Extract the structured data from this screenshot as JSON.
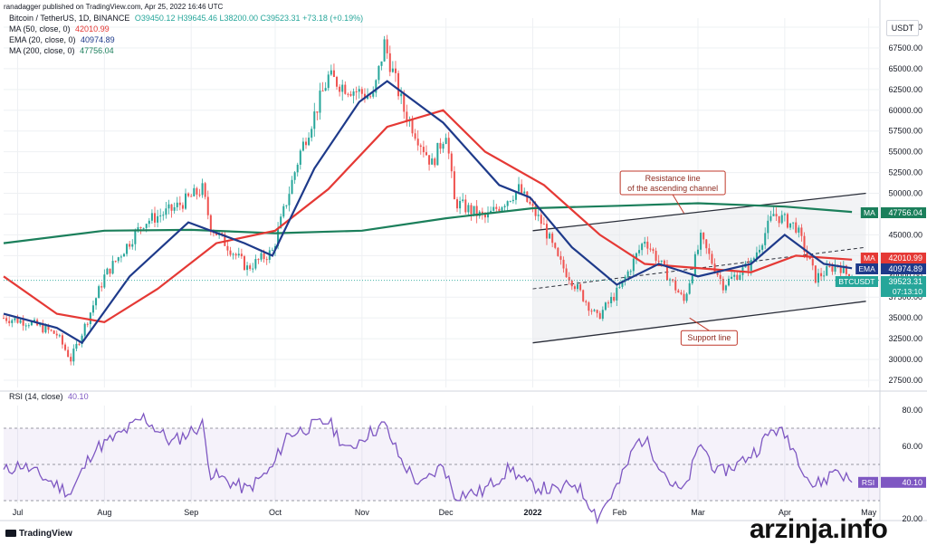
{
  "header": {
    "published": "ranadagger published on TradingView.com, Apr 25, 2022 16:46 UTC",
    "symbol": "Bitcoin / TetherUS, 1D, BINANCE",
    "ohlc": "O39450.12  H39645.46  L38200.00  C39523.31  +73.18 (+0.19%)",
    "ma50_label": "MA (50, close, 0)",
    "ma50_value": "42010.99",
    "ema20_label": "EMA (20, close, 0)",
    "ema20_value": "40974.89",
    "ma200_label": "MA (200, close, 0)",
    "ma200_value": "47756.04",
    "rsi_label": "RSI (14, close)",
    "rsi_value": "40.10",
    "currency": "USDT"
  },
  "footer": {
    "tradingview": "TradingView",
    "watermark": "arzinja.info"
  },
  "colors": {
    "up": "#26a69a",
    "down": "#ef5350",
    "ma50": "#e53935",
    "ema20": "#1e3a8a",
    "ma200": "#1b7f5b",
    "rsi": "#7e57c2",
    "grid": "#eef0f3"
  },
  "chart_data": [
    {
      "type": "candlestick",
      "title": "Bitcoin / TetherUS, 1D, BINANCE",
      "x_ticks": [
        "Jul",
        "Aug",
        "Sep",
        "Oct",
        "Nov",
        "Dec",
        "2022",
        "Feb",
        "Mar",
        "Apr",
        "May"
      ],
      "y_ticks": [
        "27500.00",
        "30000.00",
        "32500.00",
        "35000.00",
        "37500.00",
        "40000.00",
        "42500.00",
        "45000.00",
        "47500.00",
        "50000.00",
        "52500.00",
        "55000.00",
        "57500.00",
        "60000.00",
        "62500.00",
        "65000.00",
        "67500.00",
        "70000.00"
      ],
      "ylim": [
        27500,
        70000
      ],
      "x_range": [
        "2021-06-26",
        "2022-05-05"
      ],
      "price_path": [
        [
          "2021-06-26",
          35000
        ],
        [
          "2021-07-05",
          34500
        ],
        [
          "2021-07-15",
          33000
        ],
        [
          "2021-07-20",
          30000
        ],
        [
          "2021-07-25",
          34000
        ],
        [
          "2021-08-01",
          40000
        ],
        [
          "2021-08-15",
          46500
        ],
        [
          "2021-08-25",
          48000
        ],
        [
          "2021-09-05",
          50500
        ],
        [
          "2021-09-08",
          46000
        ],
        [
          "2021-09-21",
          41000
        ],
        [
          "2021-09-30",
          43000
        ],
        [
          "2021-10-10",
          55000
        ],
        [
          "2021-10-20",
          64000
        ],
        [
          "2021-10-25",
          63000
        ],
        [
          "2021-11-05",
          61500
        ],
        [
          "2021-11-09",
          68000
        ],
        [
          "2021-11-16",
          60000
        ],
        [
          "2021-11-26",
          53500
        ],
        [
          "2021-12-01",
          57500
        ],
        [
          "2021-12-04",
          49000
        ],
        [
          "2021-12-15",
          47000
        ],
        [
          "2021-12-27",
          50500
        ],
        [
          "2022-01-05",
          46000
        ],
        [
          "2022-01-10",
          42000
        ],
        [
          "2022-01-21",
          36500
        ],
        [
          "2022-01-24",
          35000
        ],
        [
          "2022-02-01",
          38500
        ],
        [
          "2022-02-10",
          44500
        ],
        [
          "2022-02-24",
          37000
        ],
        [
          "2022-03-02",
          44500
        ],
        [
          "2022-03-10",
          39000
        ],
        [
          "2022-03-20",
          41500
        ],
        [
          "2022-03-28",
          47500
        ],
        [
          "2022-04-05",
          46000
        ],
        [
          "2022-04-12",
          39800
        ],
        [
          "2022-04-20",
          41500
        ],
        [
          "2022-04-25",
          39523.31
        ]
      ],
      "ma50_path": [
        [
          "2021-06-26",
          40000
        ],
        [
          "2021-07-15",
          35500
        ],
        [
          "2021-08-01",
          34500
        ],
        [
          "2021-08-20",
          38500
        ],
        [
          "2021-09-10",
          44000
        ],
        [
          "2021-10-01",
          45500
        ],
        [
          "2021-10-20",
          50500
        ],
        [
          "2021-11-10",
          58000
        ],
        [
          "2021-11-30",
          60000
        ],
        [
          "2021-12-15",
          55000
        ],
        [
          "2022-01-05",
          51000
        ],
        [
          "2022-01-25",
          45000
        ],
        [
          "2022-02-10",
          41500
        ],
        [
          "2022-03-01",
          41000
        ],
        [
          "2022-03-20",
          40500
        ],
        [
          "2022-04-05",
          42500
        ],
        [
          "2022-04-25",
          42010.99
        ]
      ],
      "ema20_path": [
        [
          "2021-06-26",
          35500
        ],
        [
          "2021-07-15",
          33800
        ],
        [
          "2021-07-24",
          32000
        ],
        [
          "2021-08-10",
          40000
        ],
        [
          "2021-08-31",
          46500
        ],
        [
          "2021-09-20",
          44000
        ],
        [
          "2021-09-30",
          42500
        ],
        [
          "2021-10-15",
          53000
        ],
        [
          "2021-10-31",
          61000
        ],
        [
          "2021-11-10",
          63500
        ],
        [
          "2021-11-30",
          58500
        ],
        [
          "2021-12-20",
          51000
        ],
        [
          "2021-12-31",
          49500
        ],
        [
          "2022-01-15",
          43500
        ],
        [
          "2022-01-31",
          39000
        ],
        [
          "2022-02-15",
          41500
        ],
        [
          "2022-03-01",
          40000
        ],
        [
          "2022-03-20",
          41500
        ],
        [
          "2022-04-01",
          45000
        ],
        [
          "2022-04-15",
          41500
        ],
        [
          "2022-04-25",
          40974.89
        ]
      ],
      "ma200_path": [
        [
          "2021-06-26",
          44000
        ],
        [
          "2021-08-01",
          45500
        ],
        [
          "2021-09-01",
          45600
        ],
        [
          "2021-10-01",
          45200
        ],
        [
          "2021-11-01",
          45500
        ],
        [
          "2021-12-01",
          47000
        ],
        [
          "2022-01-01",
          48200
        ],
        [
          "2022-02-01",
          48500
        ],
        [
          "2022-03-01",
          48800
        ],
        [
          "2022-04-01",
          48400
        ],
        [
          "2022-04-25",
          47756.04
        ]
      ],
      "channel_support": [
        [
          "2022-01-01",
          32000
        ],
        [
          "2022-04-30",
          37000
        ]
      ],
      "channel_resistance": [
        [
          "2022-01-01",
          45500
        ],
        [
          "2022-04-30",
          50000
        ]
      ],
      "channel_midline": [
        [
          "2022-01-01",
          38500
        ],
        [
          "2022-04-30",
          43500
        ]
      ],
      "annotations": [
        {
          "text": "Resistance line of the ascending channel",
          "at": [
            "2022-02-20",
            51800
          ]
        },
        {
          "text": "Support line",
          "at": [
            "2022-03-05",
            32600
          ]
        }
      ],
      "price_labels": [
        {
          "tag": "MA",
          "value": "47756.04",
          "price": 47756.04,
          "color": "#1b7f5b"
        },
        {
          "tag": "MA",
          "value": "42010.99",
          "price": 42010.99,
          "color": "#e53935"
        },
        {
          "tag": "EMA",
          "value": "40974.89",
          "price": 40974.89,
          "color": "#1e3a8a"
        },
        {
          "tag": "BTCUSDT",
          "value": "39523.31",
          "price": 39523.31,
          "color": "#26a69a",
          "sub": "07:13:10"
        }
      ]
    },
    {
      "type": "line",
      "title": "RSI (14, close)",
      "y_ticks": [
        "20.00",
        "40.00",
        "60.00",
        "80.00"
      ],
      "ylim": [
        15,
        82
      ],
      "bands": [
        30,
        50,
        70
      ],
      "rsi_path": [
        [
          "2021-06-26",
          46
        ],
        [
          "2021-07-02",
          50
        ],
        [
          "2021-07-10",
          43
        ],
        [
          "2021-07-20",
          34
        ],
        [
          "2021-07-28",
          58
        ],
        [
          "2021-08-05",
          65
        ],
        [
          "2021-08-10",
          70
        ],
        [
          "2021-08-15",
          76
        ],
        [
          "2021-08-25",
          62
        ],
        [
          "2021-09-05",
          72
        ],
        [
          "2021-09-08",
          45
        ],
        [
          "2021-09-21",
          36
        ],
        [
          "2021-09-30",
          48
        ],
        [
          "2021-10-05",
          66
        ],
        [
          "2021-10-12",
          70
        ],
        [
          "2021-10-20",
          74
        ],
        [
          "2021-10-27",
          57
        ],
        [
          "2021-11-01",
          65
        ],
        [
          "2021-11-09",
          72
        ],
        [
          "2021-11-15",
          52
        ],
        [
          "2021-11-22",
          38
        ],
        [
          "2021-11-30",
          50
        ],
        [
          "2021-12-04",
          33
        ],
        [
          "2021-12-14",
          35
        ],
        [
          "2021-12-24",
          48
        ],
        [
          "2021-12-30",
          39
        ],
        [
          "2022-01-10",
          35
        ],
        [
          "2022-01-16",
          40
        ],
        [
          "2022-01-22",
          27
        ],
        [
          "2022-01-24",
          21
        ],
        [
          "2022-02-01",
          40
        ],
        [
          "2022-02-07",
          62
        ],
        [
          "2022-02-10",
          64
        ],
        [
          "2022-02-20",
          38
        ],
        [
          "2022-02-24",
          35
        ],
        [
          "2022-03-02",
          62
        ],
        [
          "2022-03-08",
          45
        ],
        [
          "2022-03-15",
          50
        ],
        [
          "2022-03-22",
          58
        ],
        [
          "2022-03-28",
          70
        ],
        [
          "2022-04-02",
          65
        ],
        [
          "2022-04-11",
          38
        ],
        [
          "2022-04-16",
          42
        ],
        [
          "2022-04-19",
          48
        ],
        [
          "2022-04-25",
          40.1
        ]
      ]
    }
  ]
}
